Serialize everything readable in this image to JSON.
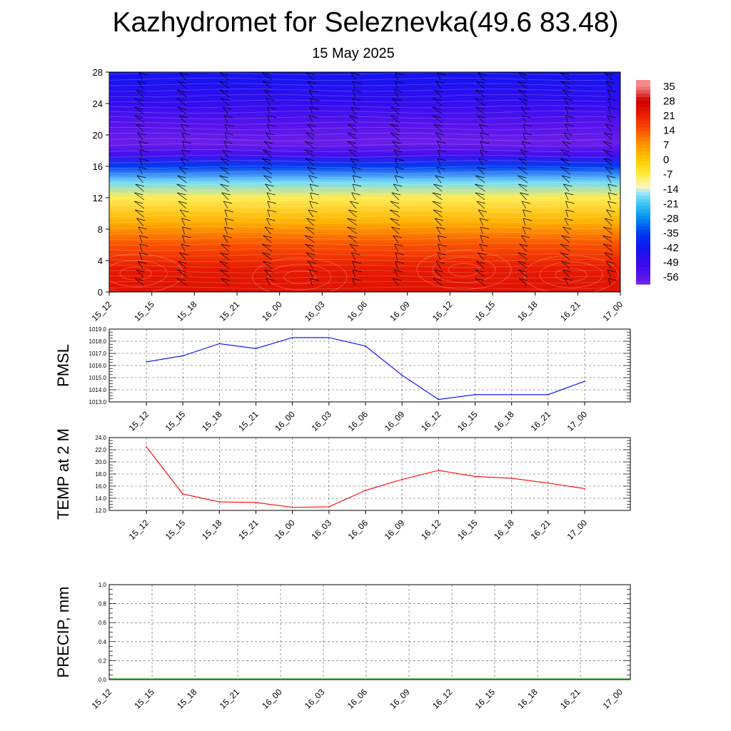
{
  "title": "Kazhydromet for Seleznevka(49.6 83.48)",
  "subtitle": "15 May 2025",
  "time_labels": [
    "15_12",
    "15_15",
    "15_18",
    "15_21",
    "16_00",
    "16_03",
    "16_06",
    "16_09",
    "16_12",
    "16_15",
    "16_18",
    "16_21",
    "17_00"
  ],
  "chart_data": [
    {
      "type": "heatmap",
      "y_ticks": [
        "0",
        "4",
        "8",
        "12",
        "16",
        "20",
        "24",
        "28"
      ],
      "ylim": [
        0,
        28
      ],
      "colorbar_labels": [
        "35",
        "28",
        "21",
        "14",
        "7",
        "0",
        "-7",
        "-14",
        "-21",
        "-28",
        "-35",
        "-42",
        "-49",
        "-56"
      ],
      "layers": [
        {
          "y": 0,
          "temp": 24
        },
        {
          "y": 3,
          "temp": 22
        },
        {
          "y": 6,
          "temp": 14
        },
        {
          "y": 9,
          "temp": 3
        },
        {
          "y": 12,
          "temp": -8
        },
        {
          "y": 14,
          "temp": -18
        },
        {
          "y": 16,
          "temp": -35
        },
        {
          "y": 17.5,
          "temp": -52
        },
        {
          "y": 19,
          "temp": -58
        },
        {
          "y": 21,
          "temp": -56
        },
        {
          "y": 24,
          "temp": -48
        },
        {
          "y": 28,
          "temp": -42
        }
      ],
      "has_wind_barbs": true
    },
    {
      "type": "line",
      "ylabel": "PMSL",
      "y_ticks": [
        "1013.0",
        "1014.0",
        "1015.0",
        "1016.0",
        "1017.0",
        "1018.0",
        "1019.0"
      ],
      "ylim": [
        1013,
        1019
      ],
      "grid": true,
      "series": [
        {
          "color": "#0000ff",
          "values": [
            1016.3,
            1016.8,
            1017.8,
            1017.4,
            1018.3,
            1018.3,
            1017.6,
            1015.2,
            1013.2,
            1013.6,
            1013.6,
            1013.6,
            1014.7
          ]
        }
      ]
    },
    {
      "type": "line",
      "ylabel": "TEMP at 2 M",
      "y_ticks": [
        "12.0",
        "14.0",
        "16.0",
        "18.0",
        "20.0",
        "22.0",
        "24.0"
      ],
      "ylim": [
        12,
        24
      ],
      "grid": true,
      "series": [
        {
          "color": "#ff0000",
          "values": [
            22.5,
            14.7,
            13.4,
            13.3,
            12.5,
            12.6,
            15.3,
            17.1,
            18.6,
            17.6,
            17.3,
            16.5,
            15.6
          ]
        }
      ]
    },
    {
      "type": "bar",
      "ylabel": "PRECIP, mm",
      "y_ticks": [
        "0.0",
        "0.2",
        "0.4",
        "0.6",
        "0.8",
        "1.0"
      ],
      "ylim": [
        0,
        1
      ],
      "grid": true,
      "values": [
        0,
        0,
        0,
        0,
        0,
        0,
        0,
        0,
        0,
        0,
        0,
        0,
        0
      ],
      "baseline_color": "#008000"
    }
  ]
}
